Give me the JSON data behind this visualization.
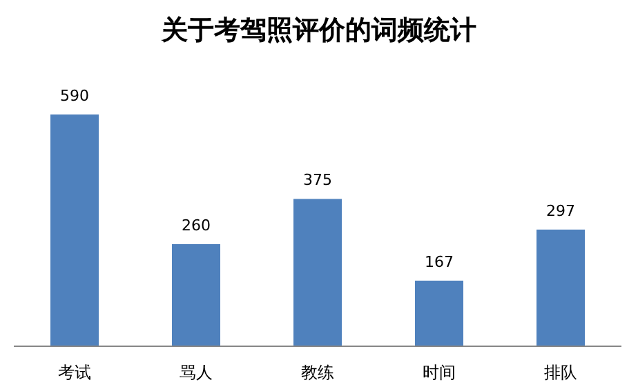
{
  "chart_data": {
    "type": "bar",
    "title": "关于考驾照评价的词频统计",
    "categories": [
      "考试",
      "骂人",
      "教练",
      "时间",
      "排队"
    ],
    "values": [
      590,
      260,
      375,
      167,
      297
    ],
    "color": "#4f81bd",
    "data_labels": true
  }
}
